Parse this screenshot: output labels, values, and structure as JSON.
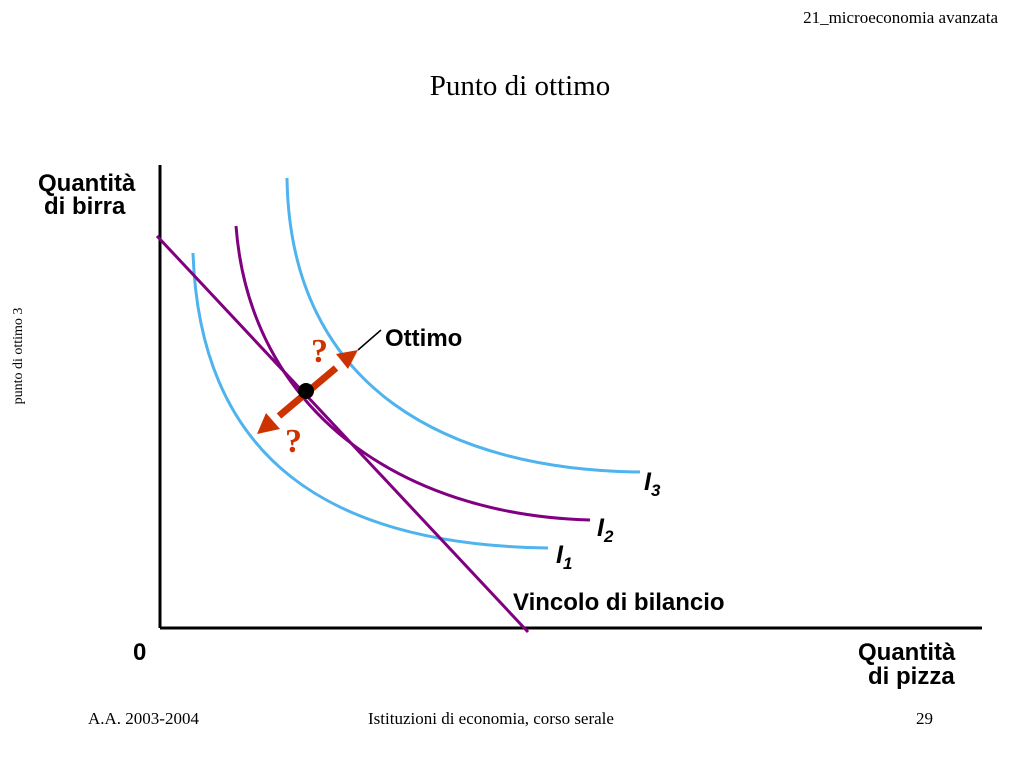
{
  "header": {
    "course_code": "21_microeconomia avanzata"
  },
  "title": "Punto di ottimo",
  "side_label": "punto di ottimo 3",
  "diagram": {
    "y_axis_label": [
      "Quantità",
      "di birra"
    ],
    "x_axis_label": [
      "Quantità",
      "di pizza"
    ],
    "origin_label": "0",
    "optimum_label": "Ottimo",
    "budget_label": "Vincolo di bilancio",
    "question_mark": "?",
    "curves": [
      {
        "base": "I",
        "sub": "1",
        "color": "#4fb3ee"
      },
      {
        "base": "I",
        "sub": "2",
        "color": "#800080"
      },
      {
        "base": "I",
        "sub": "3",
        "color": "#4fb3ee"
      }
    ],
    "budget_color": "#800080",
    "arrow_color": "#cc3300"
  },
  "footer": {
    "left": "A.A. 2003-2004",
    "center": "Istituzioni di economia, corso serale",
    "page": "29"
  }
}
